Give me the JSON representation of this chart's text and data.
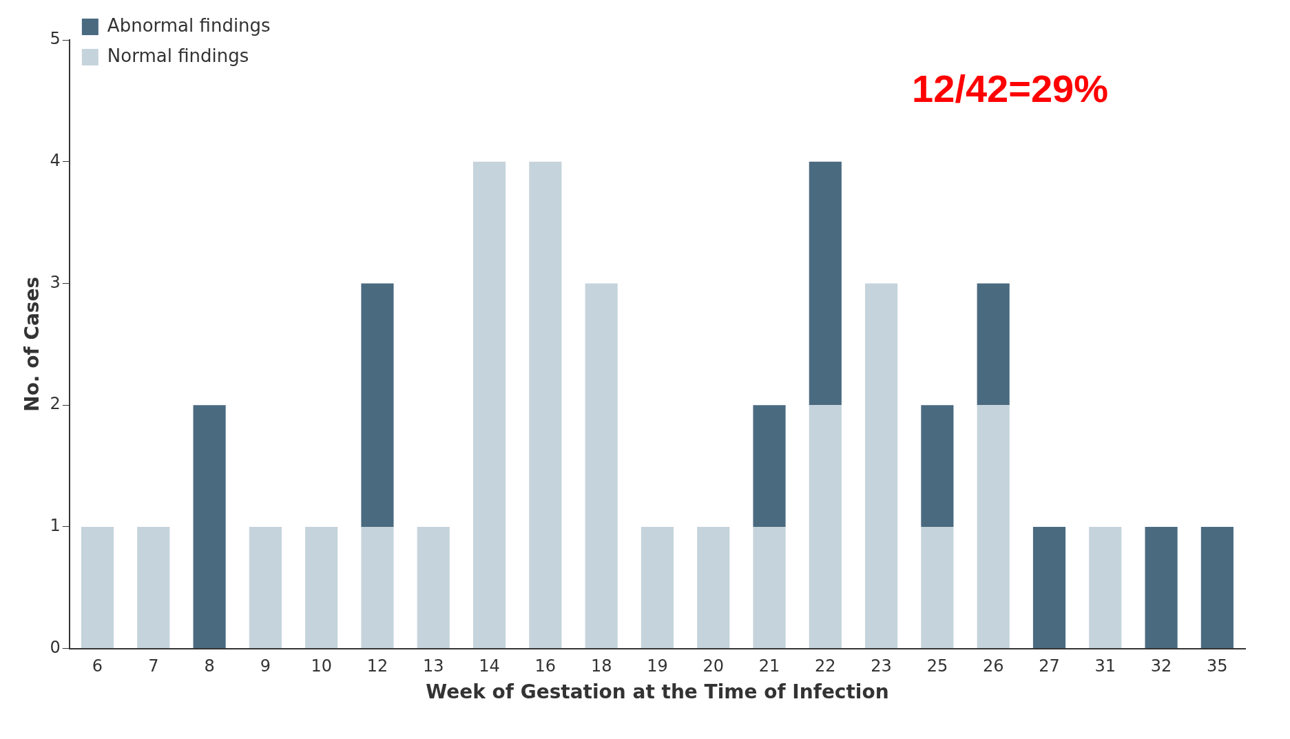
{
  "chart_data": {
    "type": "bar",
    "stacked": true,
    "xlabel": "Week of Gestation at the Time of Infection",
    "ylabel": "No. of Cases",
    "categories": [
      "6",
      "7",
      "8",
      "9",
      "10",
      "12",
      "13",
      "14",
      "16",
      "18",
      "19",
      "20",
      "21",
      "22",
      "23",
      "25",
      "26",
      "27",
      "31",
      "32",
      "35"
    ],
    "series": [
      {
        "name": "Normal findings",
        "color": "#c5d3dc",
        "values": [
          1,
          1,
          0,
          1,
          1,
          1,
          1,
          4,
          4,
          3,
          1,
          1,
          1,
          2,
          3,
          1,
          2,
          0,
          1,
          0,
          0
        ]
      },
      {
        "name": "Abnormal findings",
        "color": "#4a6a80",
        "values": [
          0,
          0,
          2,
          0,
          0,
          2,
          0,
          0,
          0,
          0,
          0,
          0,
          1,
          2,
          0,
          1,
          1,
          1,
          0,
          1,
          1
        ]
      }
    ],
    "ylim": [
      0,
      5
    ],
    "yticks": [
      0,
      1,
      2,
      3,
      4,
      5
    ],
    "grid": false,
    "legend": "top left",
    "annotations": [
      "12/42=29%"
    ]
  }
}
